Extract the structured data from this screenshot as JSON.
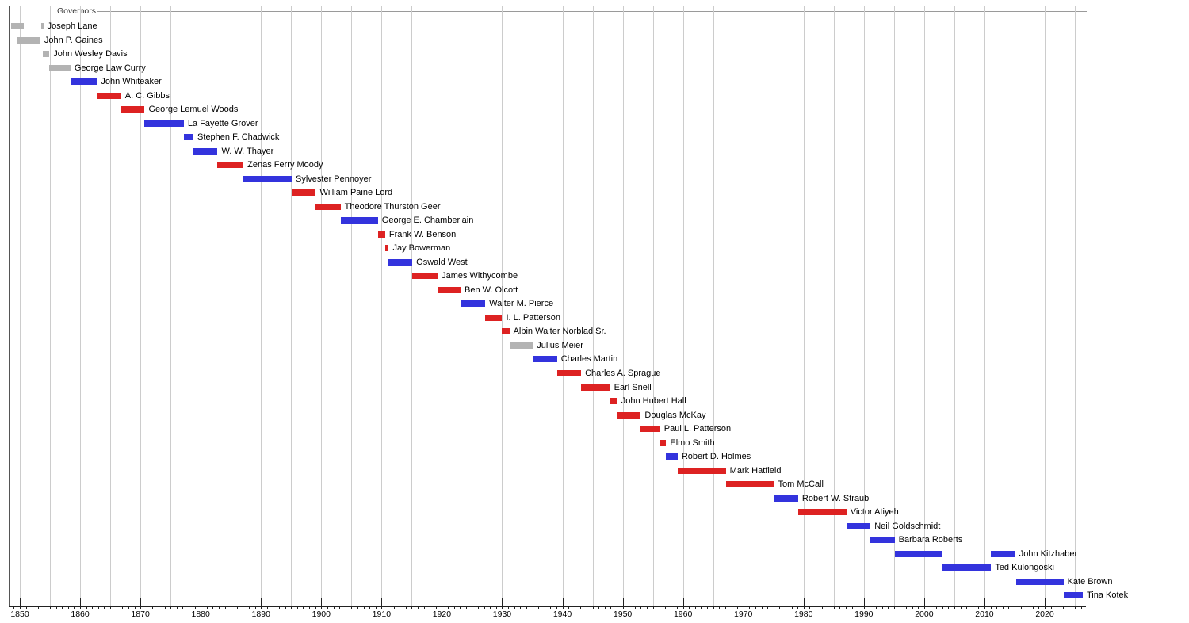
{
  "chart_data": {
    "type": "bar",
    "subtype": "timeline-gantt",
    "title": "Governors",
    "legend": "none",
    "grid": "vertical, 5-year spacing",
    "x_axis": {
      "range": [
        1848.2,
        2026.7
      ],
      "tick_labels": [
        "1850",
        "1860",
        "1870",
        "1880",
        "1890",
        "1900",
        "1910",
        "1920",
        "1930",
        "1940",
        "1950",
        "1960",
        "1970",
        "1980",
        "1990",
        "2000",
        "2010",
        "2020"
      ],
      "minor_tick_step_years": 1,
      "gridline_step_years": 5,
      "gridline_first_year": 1850,
      "gridline_last_year": 2025
    },
    "colors": {
      "red": "#dd2222",
      "blue": "#3333dd",
      "gray": "#b3b3b3",
      "gridline": "#cccccc",
      "axis": "#222222",
      "text": "#000000"
    },
    "governors": [
      {
        "name": "Joseph Lane",
        "color": "gray",
        "segments": [
          [
            1848.5,
            1850.6
          ],
          [
            1853.6,
            1853.9
          ]
        ]
      },
      {
        "name": "John P. Gaines",
        "color": "gray",
        "segments": [
          [
            1849.5,
            1853.4
          ]
        ]
      },
      {
        "name": "John Wesley Davis",
        "color": "gray",
        "segments": [
          [
            1853.8,
            1854.9
          ]
        ]
      },
      {
        "name": "George Law Curry",
        "color": "gray",
        "segments": [
          [
            1854.9,
            1858.4
          ]
        ]
      },
      {
        "name": "John Whiteaker",
        "color": "blue",
        "segments": [
          [
            1858.5,
            1862.8
          ]
        ]
      },
      {
        "name": "A. C. Gibbs",
        "color": "red",
        "segments": [
          [
            1862.8,
            1866.8
          ]
        ]
      },
      {
        "name": "George Lemuel Woods",
        "color": "red",
        "segments": [
          [
            1866.8,
            1870.7
          ]
        ]
      },
      {
        "name": "La Fayette Grover",
        "color": "blue",
        "segments": [
          [
            1870.7,
            1877.2
          ]
        ]
      },
      {
        "name": "Stephen F. Chadwick",
        "color": "blue",
        "segments": [
          [
            1877.2,
            1878.8
          ]
        ]
      },
      {
        "name": "W. W. Thayer",
        "color": "blue",
        "segments": [
          [
            1878.8,
            1882.8
          ]
        ]
      },
      {
        "name": "Zenas Ferry Moody",
        "color": "red",
        "segments": [
          [
            1882.8,
            1887.1
          ]
        ]
      },
      {
        "name": "Sylvester Pennoyer",
        "color": "blue",
        "segments": [
          [
            1887.1,
            1895.1
          ]
        ]
      },
      {
        "name": "William Paine Lord",
        "color": "red",
        "segments": [
          [
            1895.1,
            1899.1
          ]
        ]
      },
      {
        "name": "Theodore Thurston Geer",
        "color": "red",
        "segments": [
          [
            1899.1,
            1903.2
          ]
        ]
      },
      {
        "name": "George E. Chamberlain",
        "color": "blue",
        "segments": [
          [
            1903.2,
            1909.4
          ]
        ]
      },
      {
        "name": "Frank W. Benson",
        "color": "red",
        "segments": [
          [
            1909.4,
            1910.6
          ]
        ]
      },
      {
        "name": "Jay Bowerman",
        "color": "red",
        "segments": [
          [
            1910.6,
            1911.2
          ]
        ]
      },
      {
        "name": "Oswald West",
        "color": "blue",
        "segments": [
          [
            1911.2,
            1915.1
          ]
        ]
      },
      {
        "name": "James Withycombe",
        "color": "red",
        "segments": [
          [
            1915.1,
            1919.3
          ]
        ]
      },
      {
        "name": "Ben W. Olcott",
        "color": "red",
        "segments": [
          [
            1919.3,
            1923.1
          ]
        ]
      },
      {
        "name": "Walter M. Pierce",
        "color": "blue",
        "segments": [
          [
            1923.1,
            1927.2
          ]
        ]
      },
      {
        "name": "I. L. Patterson",
        "color": "red",
        "segments": [
          [
            1927.2,
            1930.0
          ]
        ]
      },
      {
        "name": "Albin Walter Norblad Sr.",
        "color": "red",
        "segments": [
          [
            1930.0,
            1931.2
          ]
        ]
      },
      {
        "name": "Julius Meier",
        "color": "gray",
        "segments": [
          [
            1931.2,
            1935.1
          ]
        ]
      },
      {
        "name": "Charles Martin",
        "color": "blue",
        "segments": [
          [
            1935.1,
            1939.1
          ]
        ]
      },
      {
        "name": "Charles A. Sprague",
        "color": "red",
        "segments": [
          [
            1939.1,
            1943.1
          ]
        ]
      },
      {
        "name": "Earl Snell",
        "color": "red",
        "segments": [
          [
            1943.1,
            1947.9
          ]
        ]
      },
      {
        "name": "John Hubert Hall",
        "color": "red",
        "segments": [
          [
            1947.9,
            1949.1
          ]
        ]
      },
      {
        "name": "Douglas McKay",
        "color": "red",
        "segments": [
          [
            1949.1,
            1953.0
          ]
        ]
      },
      {
        "name": "Paul L. Patterson",
        "color": "red",
        "segments": [
          [
            1953.0,
            1956.2
          ]
        ]
      },
      {
        "name": "Elmo Smith",
        "color": "red",
        "segments": [
          [
            1956.2,
            1957.2
          ]
        ]
      },
      {
        "name": "Robert D. Holmes",
        "color": "blue",
        "segments": [
          [
            1957.2,
            1959.1
          ]
        ]
      },
      {
        "name": "Mark Hatfield",
        "color": "red",
        "segments": [
          [
            1959.1,
            1967.1
          ]
        ]
      },
      {
        "name": "Tom McCall",
        "color": "red",
        "segments": [
          [
            1967.1,
            1975.1
          ]
        ]
      },
      {
        "name": "Robert W. Straub",
        "color": "blue",
        "segments": [
          [
            1975.1,
            1979.1
          ]
        ]
      },
      {
        "name": "Victor Atiyeh",
        "color": "red",
        "segments": [
          [
            1979.1,
            1987.1
          ]
        ]
      },
      {
        "name": "Neil Goldschmidt",
        "color": "blue",
        "segments": [
          [
            1987.1,
            1991.1
          ]
        ]
      },
      {
        "name": "Barbara Roberts",
        "color": "blue",
        "segments": [
          [
            1991.1,
            1995.1
          ]
        ]
      },
      {
        "name": "John Kitzhaber",
        "color": "blue",
        "segments": [
          [
            1995.1,
            2003.1
          ],
          [
            2011.1,
            2015.1
          ]
        ]
      },
      {
        "name": "Ted Kulongoski",
        "color": "blue",
        "segments": [
          [
            2003.1,
            2011.1
          ]
        ]
      },
      {
        "name": "Kate Brown",
        "color": "blue",
        "segments": [
          [
            2015.2,
            2023.1
          ]
        ]
      },
      {
        "name": "Tina Kotek",
        "color": "blue",
        "segments": [
          [
            2023.1,
            2026.3
          ]
        ]
      }
    ]
  }
}
